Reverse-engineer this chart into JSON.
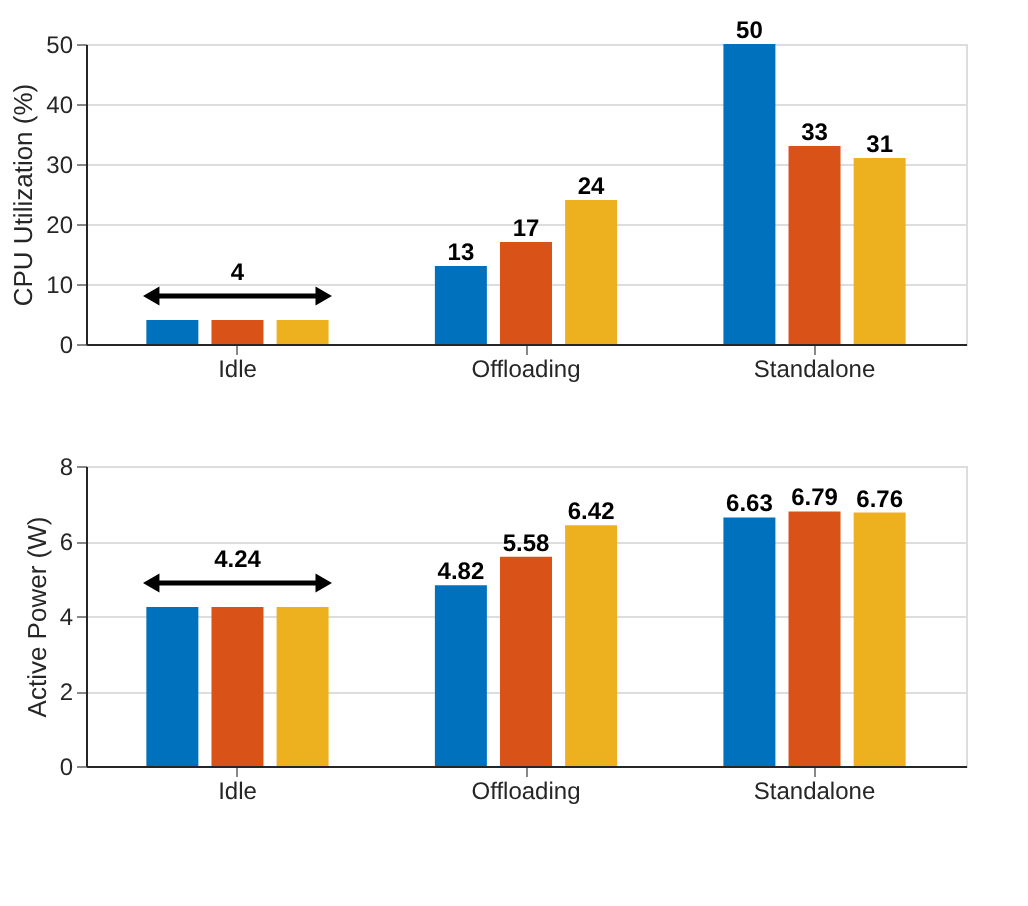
{
  "chart_data": [
    {
      "type": "bar",
      "categories": [
        "Idle",
        "Offloading",
        "Standalone"
      ],
      "ylabel": "CPU Utilization (%)",
      "ylim": [
        0,
        50
      ],
      "yticks": [
        0,
        10,
        20,
        30,
        40,
        50
      ],
      "grid": "y",
      "series": [
        {
          "color": "#0072bd",
          "values": [
            4,
            13,
            50
          ],
          "value_labels": [
            null,
            "13",
            "50"
          ]
        },
        {
          "color": "#d95319",
          "values": [
            4,
            17,
            33
          ],
          "value_labels": [
            null,
            "17",
            "33"
          ]
        },
        {
          "color": "#edb120",
          "values": [
            4,
            24,
            31
          ],
          "value_labels": [
            null,
            "24",
            "31"
          ]
        }
      ],
      "annotations": [
        {
          "text": "4",
          "x": "Idle",
          "y": 4
        }
      ]
    },
    {
      "type": "bar",
      "categories": [
        "Idle",
        "Offloading",
        "Standalone"
      ],
      "ylabel": "Active Power (W)",
      "ylim": [
        0,
        8
      ],
      "yticks": [
        0,
        2,
        4,
        6,
        8
      ],
      "grid": "y",
      "series": [
        {
          "color": "#0072bd",
          "values": [
            4.24,
            4.82,
            6.63
          ],
          "value_labels": [
            null,
            "4.82",
            "6.63"
          ]
        },
        {
          "color": "#d95319",
          "values": [
            4.24,
            5.58,
            6.79
          ],
          "value_labels": [
            null,
            "5.58",
            "6.79"
          ]
        },
        {
          "color": "#edb120",
          "values": [
            4.24,
            6.42,
            6.76
          ],
          "value_labels": [
            null,
            "6.42",
            "6.76"
          ]
        }
      ],
      "annotations": [
        {
          "text": "4.24",
          "x": "Idle",
          "y": 4.24
        }
      ]
    }
  ]
}
